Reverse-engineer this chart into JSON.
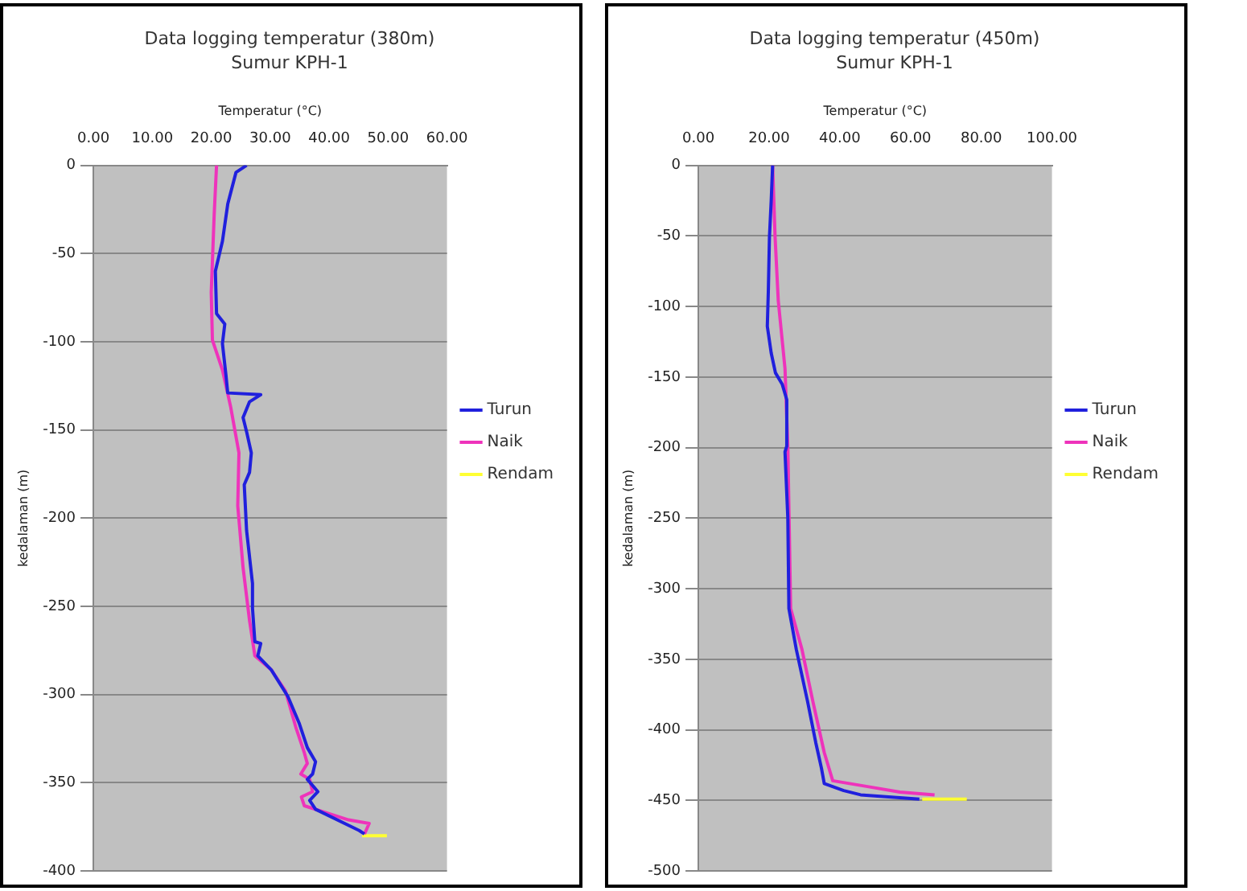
{
  "chart_data": [
    {
      "type": "line",
      "title": "Data logging temperatur (380m)",
      "subtitle": "Sumur KPH-1",
      "xlabel": "Temperatur (°C)",
      "ylabel": "kedalaman (m)",
      "xlim": [
        0,
        60
      ],
      "xticks": [
        {
          "value": 0,
          "label": "0.00"
        },
        {
          "value": 10,
          "label": "10.00"
        },
        {
          "value": 20,
          "label": "20.00"
        },
        {
          "value": 30,
          "label": "30.00"
        },
        {
          "value": 40,
          "label": "40.00"
        },
        {
          "value": 50,
          "label": "50.00"
        },
        {
          "value": 60,
          "label": "60.00"
        }
      ],
      "ylim": [
        -400,
        0
      ],
      "yticks": [
        0,
        -50,
        -100,
        -150,
        -200,
        -250,
        -300,
        -350,
        -400
      ],
      "grid": "y",
      "legend": "right",
      "marker": "none",
      "series": [
        {
          "name": "Turun",
          "color": "#2020dd",
          "x": [
            26.0,
            24.2,
            22.8,
            21.9,
            20.7,
            20.9,
            22.3,
            21.9,
            22.5,
            22.8,
            28.4,
            26.5,
            25.4,
            26.0,
            26.8,
            26.5,
            25.6,
            26.0,
            27.0,
            27.0,
            27.4,
            28.4,
            27.9,
            30.2,
            33.0,
            34.9,
            36.3,
            37.7,
            37.2,
            36.3,
            38.1,
            36.7,
            37.7,
            45.1,
            46.0
          ],
          "values": [
            0,
            -4,
            -22,
            -43,
            -60,
            -84,
            -90,
            -101,
            -119,
            -129,
            -130,
            -134,
            -143,
            -151,
            -163,
            -174,
            -181,
            -207,
            -237,
            -251,
            -270,
            -271,
            -278,
            -286,
            -301,
            -316,
            -330,
            -338,
            -345,
            -348,
            -355,
            -360,
            -365,
            -377,
            -379
          ]
        },
        {
          "name": "Naik",
          "color": "#ee33bb",
          "x": [
            20.9,
            20.5,
            20.0,
            20.2,
            21.9,
            23.3,
            24.7,
            24.5,
            25.4,
            26.5,
            27.4,
            30.2,
            32.6,
            34.4,
            35.8,
            36.3,
            35.2,
            36.7,
            37.2,
            35.3,
            35.8,
            43.3,
            46.8,
            46.0
          ],
          "values": [
            0,
            -28,
            -72,
            -99,
            -116,
            -137,
            -163,
            -193,
            -228,
            -258,
            -278,
            -286,
            -298,
            -319,
            -333,
            -339,
            -345,
            -348,
            -355,
            -358,
            -363,
            -371,
            -373,
            -379
          ]
        },
        {
          "name": "Rendam",
          "color": "#ffff33",
          "x": [
            45.6,
            49.8
          ],
          "values": [
            -380,
            -380
          ]
        }
      ]
    },
    {
      "type": "line",
      "title": "Data logging temperatur (450m)",
      "subtitle": "Sumur KPH-1",
      "xlabel": "Temperatur (°C)",
      "ylabel": "kedalaman (m)",
      "xlim": [
        0,
        100
      ],
      "xticks": [
        {
          "value": 0,
          "label": "0.00"
        },
        {
          "value": 20,
          "label": "20.00"
        },
        {
          "value": 40,
          "label": "40.00"
        },
        {
          "value": 60,
          "label": "60.00"
        },
        {
          "value": 80,
          "label": "80.00"
        },
        {
          "value": 100,
          "label": "100.00"
        }
      ],
      "ylim": [
        -500,
        0
      ],
      "yticks": [
        0,
        -50,
        -100,
        -150,
        -200,
        -250,
        -300,
        -350,
        -400,
        -450,
        -500
      ],
      "grid": "y",
      "legend": "right",
      "marker": "none",
      "series": [
        {
          "name": "Turun",
          "color": "#2020dd",
          "x": [
            21.0,
            20.6,
            20.1,
            19.8,
            19.5,
            20.6,
            21.8,
            23.7,
            25.0,
            25.0,
            24.5,
            25.3,
            25.6,
            27.7,
            30.9,
            33.2,
            34.8,
            35.6,
            41.1,
            45.9,
            62.5
          ],
          "values": [
            0,
            -25,
            -51,
            -88,
            -114,
            -133,
            -147,
            -155,
            -166,
            -199,
            -203,
            -250,
            -314,
            -343,
            -380,
            -409,
            -427,
            -438,
            -443,
            -446,
            -449
          ]
        },
        {
          "name": "Naik",
          "color": "#ee33bb",
          "x": [
            21.0,
            21.7,
            22.6,
            24.5,
            25.3,
            26.1,
            29.3,
            32.4,
            35.6,
            38.0,
            47.5,
            57.0,
            66.8
          ],
          "values": [
            0,
            -51,
            -96,
            -144,
            -199,
            -314,
            -343,
            -380,
            -416,
            -436,
            -440,
            -444,
            -446
          ]
        },
        {
          "name": "Rendam",
          "color": "#ffff33",
          "x": [
            63.3,
            75.9
          ],
          "values": [
            -449,
            -449
          ]
        }
      ]
    }
  ]
}
